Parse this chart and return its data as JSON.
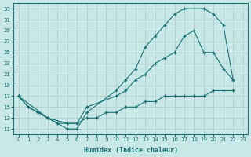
{
  "xlabel": "Humidex (Indice chaleur)",
  "bg_color": "#c8e8e8",
  "grid_color": "#b0d0d0",
  "line_color": "#1a7070",
  "xlim": [
    -0.5,
    23.5
  ],
  "ylim": [
    10,
    34
  ],
  "xticks": [
    0,
    1,
    2,
    3,
    4,
    5,
    6,
    7,
    8,
    9,
    10,
    11,
    12,
    13,
    14,
    15,
    16,
    17,
    18,
    19,
    20,
    21,
    22,
    23
  ],
  "yticks": [
    11,
    13,
    15,
    17,
    19,
    21,
    23,
    25,
    27,
    29,
    31,
    33
  ],
  "line1_x": [
    0,
    1,
    2,
    3,
    4,
    5,
    6,
    7,
    10,
    11,
    12,
    13,
    14,
    15,
    16,
    17,
    19,
    20,
    21,
    22
  ],
  "line1_y": [
    17,
    15,
    14,
    13,
    12,
    11,
    11,
    14,
    18,
    20,
    22,
    26,
    28,
    30,
    32,
    33,
    33,
    32,
    30,
    20
  ],
  "line2_x": [
    0,
    3,
    5,
    6,
    7,
    10,
    11,
    12,
    13,
    14,
    15,
    16,
    17,
    18,
    19,
    20,
    21,
    22
  ],
  "line2_y": [
    17,
    13,
    12,
    12,
    15,
    17,
    18,
    20,
    21,
    23,
    24,
    25,
    28,
    29,
    25,
    25,
    22,
    20
  ],
  "line3_x": [
    0,
    1,
    2,
    3,
    4,
    5,
    6,
    7,
    8,
    9,
    10,
    11,
    12,
    13,
    14,
    15,
    16,
    17,
    18,
    19,
    20,
    21,
    22
  ],
  "line3_y": [
    17,
    15,
    14,
    13,
    12,
    12,
    12,
    13,
    13,
    14,
    14,
    15,
    15,
    16,
    16,
    17,
    17,
    17,
    17,
    17,
    18,
    18,
    18
  ]
}
